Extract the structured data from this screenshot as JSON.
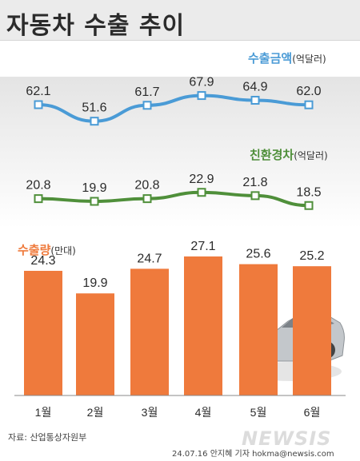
{
  "title": "자동차 수출 추이",
  "source": "자료: 산업통상자원부",
  "credit": "24.07.16 안지혜 기자 hokma@newsis.com",
  "logo_text": "NEWSIS",
  "chart_data": [
    {
      "type": "line",
      "title": "수출금액",
      "unit": "(억달러)",
      "categories": [
        "1월",
        "2월",
        "3월",
        "4월",
        "5월",
        "6월"
      ],
      "values": [
        62.1,
        51.6,
        61.7,
        67.9,
        64.9,
        62.0
      ],
      "value_labels": [
        "62.1",
        "51.6",
        "61.7",
        "67.9",
        "64.9",
        "62.0"
      ],
      "color": "#4a9bd6"
    },
    {
      "type": "line",
      "title": "친환경차",
      "unit": "(억달러)",
      "categories": [
        "1월",
        "2월",
        "3월",
        "4월",
        "5월",
        "6월"
      ],
      "values": [
        20.8,
        19.9,
        20.8,
        22.9,
        21.8,
        18.5
      ],
      "value_labels": [
        "20.8",
        "19.9",
        "20.8",
        "22.9",
        "21.8",
        "18.5"
      ],
      "color": "#4f8f3a"
    },
    {
      "type": "bar",
      "title": "수출량",
      "unit": "(만대)",
      "categories": [
        "1월",
        "2월",
        "3월",
        "4월",
        "5월",
        "6월"
      ],
      "values": [
        24.3,
        19.9,
        24.7,
        27.1,
        25.6,
        25.2
      ],
      "value_labels": [
        "24.3",
        "19.9",
        "24.7",
        "27.1",
        "25.6",
        "25.2"
      ],
      "color": "#ef7a3c"
    }
  ]
}
